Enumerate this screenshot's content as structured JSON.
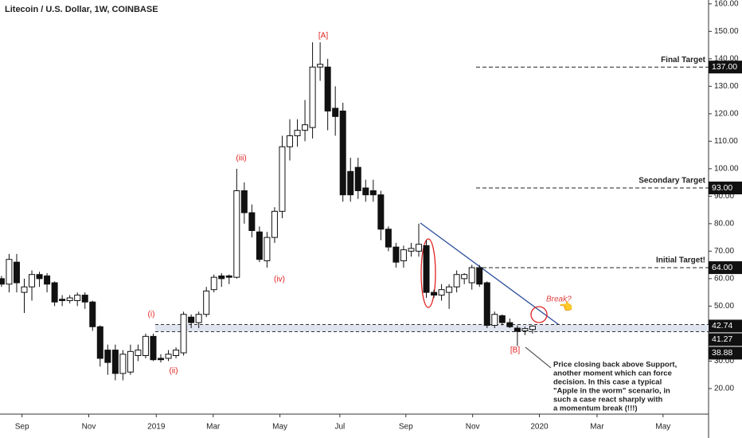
{
  "chart_data": {
    "type": "candlestick",
    "title": "Litecoin / U.S. Dollar, 1W, COINBASE",
    "candles": [
      [
        60,
        61,
        57,
        58
      ],
      [
        58,
        69,
        55,
        67
      ],
      [
        66,
        69,
        55,
        58.5
      ],
      [
        55,
        60,
        47.5,
        57
      ],
      [
        57,
        63,
        52,
        61.5
      ],
      [
        61.5,
        62.5,
        57,
        60
      ],
      [
        61,
        62,
        55,
        58
      ],
      [
        58.5,
        59,
        50,
        51.5
      ],
      [
        52.5,
        54,
        50,
        52
      ],
      [
        52,
        54,
        51,
        53
      ],
      [
        52,
        55,
        50,
        54
      ],
      [
        54,
        55,
        49,
        51.5
      ],
      [
        51.5,
        52,
        41,
        42.5
      ],
      [
        42.5,
        43,
        28,
        31
      ],
      [
        34,
        36,
        25,
        29.5
      ],
      [
        34,
        36,
        23,
        25.5
      ],
      [
        25.5,
        34,
        23,
        32.5
      ],
      [
        26,
        36,
        25,
        33.5
      ],
      [
        32,
        36,
        30,
        34
      ],
      [
        32,
        40,
        31,
        39
      ],
      [
        39,
        40,
        30,
        30.5
      ],
      [
        31,
        32.5,
        29.5,
        30.5
      ],
      [
        31,
        34,
        30,
        32.5
      ],
      [
        32,
        35,
        31,
        34
      ],
      [
        33,
        48,
        32,
        47
      ],
      [
        46,
        47,
        42,
        44
      ],
      [
        44,
        48,
        42,
        47
      ],
      [
        47,
        57,
        46,
        55.5
      ],
      [
        56,
        61.5,
        55,
        60.5
      ],
      [
        61,
        62,
        57,
        60
      ],
      [
        61,
        61.5,
        58,
        60.5
      ],
      [
        60.5,
        100,
        60,
        92
      ],
      [
        92,
        95,
        80,
        84
      ],
      [
        84,
        87,
        75,
        77.5
      ],
      [
        77,
        79,
        66,
        67
      ],
      [
        66.5,
        77,
        64,
        75
      ],
      [
        75,
        86,
        73,
        84.5
      ],
      [
        84.5,
        112,
        82,
        108
      ],
      [
        108,
        118,
        103,
        112
      ],
      [
        112,
        118,
        108,
        114
      ],
      [
        114,
        125,
        110,
        116
      ],
      [
        115,
        146,
        111,
        137
      ],
      [
        137,
        146,
        132,
        138
      ],
      [
        137,
        140,
        114,
        121
      ],
      [
        122,
        130,
        112,
        119
      ],
      [
        121,
        124,
        88,
        90.5
      ],
      [
        99,
        104,
        88,
        90.5
      ],
      [
        100.5,
        104,
        89,
        92
      ],
      [
        93,
        96,
        88,
        90.5
      ],
      [
        92,
        96,
        88,
        90.5
      ],
      [
        90.5,
        92,
        74,
        78
      ],
      [
        78,
        79,
        70,
        71.5
      ],
      [
        71.5,
        73,
        64,
        66
      ],
      [
        66.5,
        72,
        64,
        70.5
      ],
      [
        70,
        73,
        68,
        71
      ],
      [
        70,
        80,
        68,
        72.5
      ],
      [
        72,
        74,
        53,
        55
      ],
      [
        55,
        56,
        53,
        54
      ],
      [
        54,
        58,
        52,
        56
      ],
      [
        55,
        58,
        49,
        57
      ],
      [
        57,
        63,
        55,
        61.5
      ],
      [
        60,
        62,
        58,
        61.5
      ],
      [
        58.5,
        65,
        56,
        64
      ],
      [
        64,
        65,
        57,
        58
      ],
      [
        58.5,
        59,
        42,
        43
      ],
      [
        43,
        48,
        42,
        47
      ],
      [
        46.5,
        47,
        43,
        44
      ],
      [
        44,
        45.5,
        42,
        42.5
      ],
      [
        42,
        43,
        35.5,
        40.8
      ],
      [
        41,
        42.5,
        39.5,
        41.8
      ],
      [
        41.5,
        43,
        40,
        42.7
      ]
    ],
    "xlim": [
      -0.2,
      93.2
    ],
    "xticks": [
      {
        "value": 2.7,
        "label": "Sep"
      },
      {
        "value": 11.5,
        "label": "Nov"
      },
      {
        "value": 20.4,
        "label": "2019"
      },
      {
        "value": 27.9,
        "label": "Mar"
      },
      {
        "value": 36.7,
        "label": "May"
      },
      {
        "value": 44.6,
        "label": "Jul"
      },
      {
        "value": 53.3,
        "label": "Sep"
      },
      {
        "value": 62.1,
        "label": "Nov"
      },
      {
        "value": 70.9,
        "label": "2020"
      },
      {
        "value": 78.5,
        "label": "Mar"
      },
      {
        "value": 87.2,
        "label": "May"
      }
    ],
    "ylim": [
      10.7,
      161.4
    ],
    "yticks": [
      {
        "value": 160,
        "label": "160.00"
      },
      {
        "value": 150,
        "label": "150.00"
      },
      {
        "value": 140,
        "label": "140.00"
      },
      {
        "value": 130,
        "label": "130.00"
      },
      {
        "value": 120,
        "label": "120.00"
      },
      {
        "value": 110,
        "label": "110.00"
      },
      {
        "value": 100,
        "label": "100.00"
      },
      {
        "value": 90,
        "label": "90.00"
      },
      {
        "value": 80,
        "label": "80.00"
      },
      {
        "value": 70,
        "label": "70.00"
      },
      {
        "value": 60,
        "label": "60.00"
      },
      {
        "value": 50,
        "label": "50.00"
      },
      {
        "value": 30,
        "label": "30.00"
      },
      {
        "value": 20,
        "label": "20.00"
      }
    ],
    "targets": [
      {
        "name": "Final Target",
        "value": 137,
        "label": "137.00"
      },
      {
        "name": "Secondary Target",
        "value": 93,
        "label": "93.00"
      },
      {
        "name": "Initial Target!",
        "value": 64,
        "label": "64.00"
      }
    ],
    "support": [
      {
        "value": 42.74,
        "label": "42.74"
      },
      {
        "value": 41.27,
        "label": "41.27"
      }
    ],
    "last_low": {
      "value": 38.88,
      "label": "38.88"
    },
    "wave_labels": [
      "(i)",
      "(ii)",
      "(iii)",
      "(iv)",
      "[A]",
      "[B]"
    ],
    "break_label": "Break?",
    "note": [
      "Price closing back above Support,",
      "another moment which can force",
      "decision. In this case a typical",
      "\"Apple in the worm\" scenario, in",
      "such a case react sharply with",
      "a momentum break (!!!)"
    ]
  }
}
